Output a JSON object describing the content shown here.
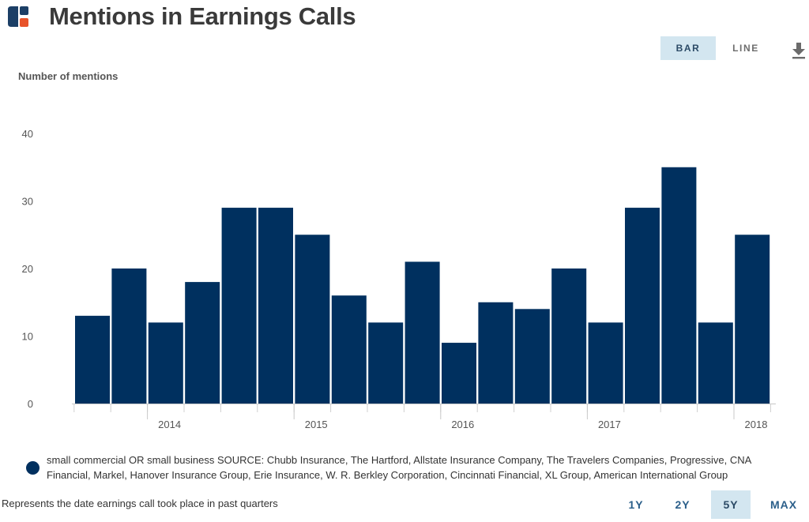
{
  "header": {
    "title": "Mentions in Earnings Calls"
  },
  "view_toggle": {
    "bar_label": "BAR",
    "line_label": "LINE",
    "active": "BAR"
  },
  "footer": {
    "legend_text": "small commercial OR small business SOURCE: Chubb Insurance, The Hartford, Allstate Insurance Company, The Travelers Companies, Progressive, CNA Financial, Markel, Hanover Insurance Group, Erie Insurance, W. R. Berkley Corporation, Cincinnati Financial, XL Group, American International Group",
    "note": "Represents the date earnings call took place in past quarters"
  },
  "range_buttons": {
    "items": [
      "1Y",
      "2Y",
      "5Y",
      "MAX"
    ],
    "active": "5Y"
  },
  "colors": {
    "bar": "#00305f",
    "active_button_bg": "#d3e6f0",
    "logo_dark": "#1c3f66",
    "logo_accent": "#e8532a"
  },
  "chart_data": {
    "type": "bar",
    "ylabel": "Number of mentions",
    "ylim": [
      0,
      40
    ],
    "yticks": [
      0,
      10,
      20,
      30,
      40
    ],
    "grid": false,
    "xtick_labels": [
      "2014",
      "2015",
      "2016",
      "2017",
      "2018"
    ],
    "xtick_bar_index": [
      2,
      6,
      10,
      14,
      18
    ],
    "series": [
      {
        "name": "small commercial OR small business",
        "values": [
          13,
          20,
          12,
          18,
          29,
          29,
          25,
          16,
          12,
          21,
          9,
          15,
          14,
          20,
          12,
          29,
          35,
          12,
          25
        ]
      }
    ]
  }
}
